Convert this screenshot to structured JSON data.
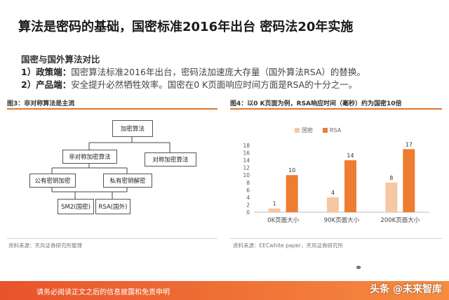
{
  "title": "算法是密码的基础，国密标准2016年出台 密码法20年实施",
  "comparison": {
    "heading": "国密与国外算法对比",
    "points": [
      {
        "label": "1）政策端：",
        "text": "国密算法标准2016年出台，密码法加速庞大存量（国外算法RSA）的替换。"
      },
      {
        "label": "2）产品端：",
        "text": "安全提升必然牺牲效率。国密在0 K页面响应时间方面是RSA的十分之一。"
      }
    ]
  },
  "figure3": {
    "caption": "图3：非对称算法是主流",
    "source": "资料来源：天风证券研究所整理",
    "nodes": {
      "root": "加密算法",
      "asym": "非对称加密算法",
      "sym": "对称加密算法",
      "pub": "公有密钥加密",
      "priv": "私有密钥解密",
      "sm2": "SM2(国密)",
      "rsa": "RSA(国外)"
    }
  },
  "figure4": {
    "caption": "图4：以0 K页面为例，RSA响应时间（毫秒）约为国密10倍",
    "source": "资料来源：EECwhite paper，天风证券研究所"
  },
  "chart_data": {
    "type": "bar",
    "categories": [
      "0K页面大小",
      "90K页面大小",
      "200K页面大小"
    ],
    "series": [
      {
        "name": "国密",
        "values": [
          1,
          4,
          8
        ],
        "color": "#f5c7a3"
      },
      {
        "name": "RSA",
        "values": [
          10,
          14,
          17
        ],
        "color": "#ed7d31"
      }
    ],
    "yticks": [
      "0",
      "2",
      "4",
      "6",
      "8",
      "10",
      "12",
      "14",
      "16",
      "18"
    ],
    "ylim": [
      0,
      18
    ],
    "legend": "top-left",
    "grid": false
  },
  "footer": {
    "disclaimer": "请务必阅读正文之后的信息披露和免责申明",
    "watermark": "头条 @未来智库"
  }
}
